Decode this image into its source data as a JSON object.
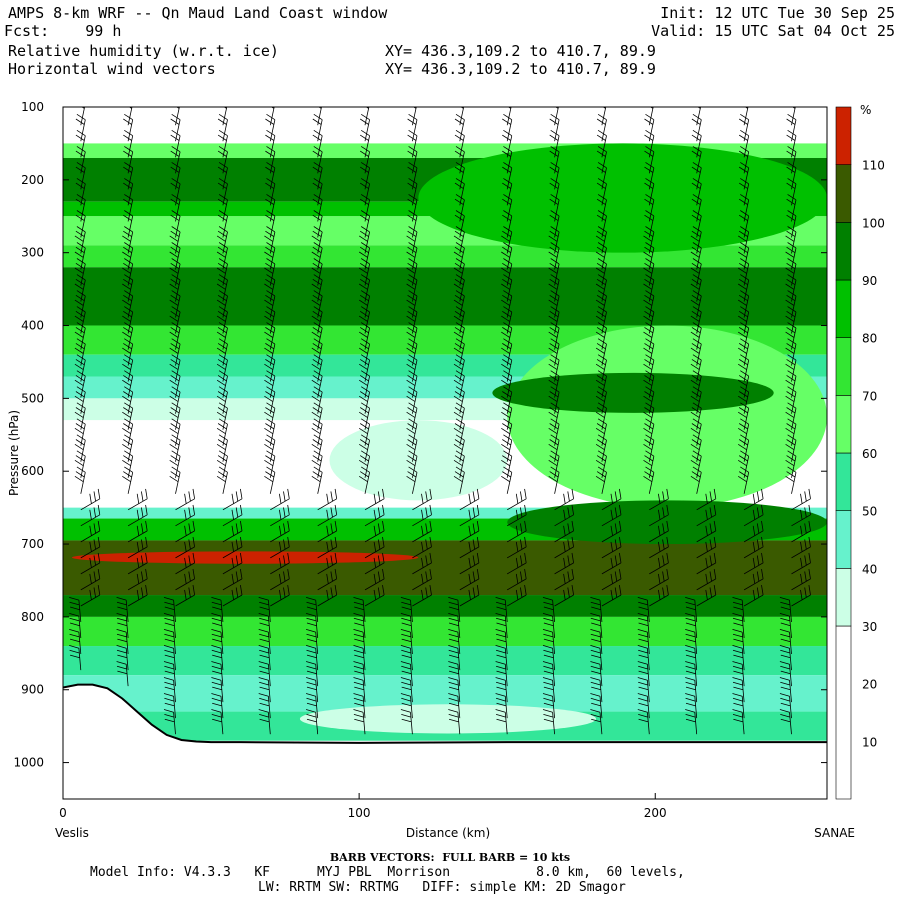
{
  "header": {
    "title": "AMPS 8-km WRF -- Qn Maud Land Coast window",
    "fcst": "Fcst:    99 h",
    "init": "Init: 12 UTC Tue 30 Sep 25",
    "valid": "Valid: 15 UTC Sat 04 Oct 25",
    "field1": "Relative humidity (w.r.t. ice)",
    "field2": "Horizontal wind vectors",
    "xy1": "XY= 436.3,109.2 to 410.7, 89.9",
    "xy2": "XY= 436.3,109.2 to 410.7, 89.9"
  },
  "chart_data": {
    "type": "heatmap",
    "ylabel": "Pressure (hPa)",
    "xlabel": "Distance (km)",
    "xlim": [
      0,
      258
    ],
    "ylim": [
      1050,
      100
    ],
    "x_ticks": [
      0,
      100,
      200
    ],
    "y_ticks": [
      100,
      200,
      300,
      400,
      500,
      600,
      700,
      800,
      900,
      1000
    ],
    "x_start_label": "Veslis",
    "x_end_label": "SANAE",
    "colorbar": {
      "unit": "%",
      "ticks": [
        10,
        20,
        30,
        40,
        50,
        60,
        70,
        80,
        90,
        100,
        110
      ],
      "levels": [
        {
          "from": 0,
          "to": 30,
          "color": "#ffffff"
        },
        {
          "from": 30,
          "to": 40,
          "color": "#ccffe6"
        },
        {
          "from": 40,
          "to": 50,
          "color": "#66f2cc"
        },
        {
          "from": 50,
          "to": 60,
          "color": "#33e699"
        },
        {
          "from": 60,
          "to": 70,
          "color": "#66ff66"
        },
        {
          "from": 70,
          "to": 80,
          "color": "#33e633"
        },
        {
          "from": 80,
          "to": 90,
          "color": "#00c000"
        },
        {
          "from": 90,
          "to": 100,
          "color": "#008000"
        },
        {
          "from": 100,
          "to": 110,
          "color": "#3a5a00"
        },
        {
          "from": 110,
          "to": 120,
          "color": "#cc2200"
        }
      ]
    },
    "rh_layers": [
      {
        "p_top": 100,
        "p_bot": 150,
        "rh": 0
      },
      {
        "p_top": 150,
        "p_bot": 170,
        "rh": 65
      },
      {
        "p_top": 170,
        "p_bot": 230,
        "rh": 95
      },
      {
        "p_top": 230,
        "p_bot": 250,
        "rh": 85
      },
      {
        "p_top": 250,
        "p_bot": 290,
        "rh": 65
      },
      {
        "p_top": 290,
        "p_bot": 320,
        "rh": 75
      },
      {
        "p_top": 320,
        "p_bot": 400,
        "rh": 92
      },
      {
        "p_top": 400,
        "p_bot": 440,
        "rh": 75
      },
      {
        "p_top": 440,
        "p_bot": 470,
        "rh": 55
      },
      {
        "p_top": 470,
        "p_bot": 500,
        "rh": 45
      },
      {
        "p_top": 500,
        "p_bot": 530,
        "rh": 35
      },
      {
        "p_top": 530,
        "p_bot": 650,
        "rh": 20
      },
      {
        "p_top": 650,
        "p_bot": 665,
        "rh": 45
      },
      {
        "p_top": 665,
        "p_bot": 695,
        "rh": 85
      },
      {
        "p_top": 695,
        "p_bot": 770,
        "rh": 103
      },
      {
        "p_top": 770,
        "p_bot": 800,
        "rh": 93
      },
      {
        "p_top": 800,
        "p_bot": 840,
        "rh": 75
      },
      {
        "p_top": 840,
        "p_bot": 880,
        "rh": 55
      },
      {
        "p_top": 880,
        "p_bot": 930,
        "rh": 45
      },
      {
        "p_top": 930,
        "p_bot": 970,
        "rh": 50
      }
    ],
    "rh_patches": [
      {
        "x": [
          120,
          258
        ],
        "p": [
          150,
          300
        ],
        "rh": 80
      },
      {
        "x": [
          150,
          258
        ],
        "p": [
          400,
          650
        ],
        "rh": 65
      },
      {
        "x": [
          145,
          240
        ],
        "p": [
          465,
          520
        ],
        "rh": 93
      },
      {
        "x": [
          90,
          150
        ],
        "p": [
          530,
          640
        ],
        "rh": 35
      },
      {
        "x": [
          150,
          258
        ],
        "p": [
          640,
          700
        ],
        "rh": 93
      },
      {
        "x": [
          3,
          120
        ],
        "p": [
          710,
          727
        ],
        "rh": 113
      },
      {
        "x": [
          80,
          180
        ],
        "p": [
          920,
          960
        ],
        "rh": 30
      }
    ],
    "terrain": {
      "x": [
        0,
        5,
        10,
        15,
        20,
        25,
        30,
        35,
        40,
        45,
        50,
        60,
        100,
        150,
        258
      ],
      "p": [
        897,
        893,
        893,
        898,
        912,
        930,
        948,
        962,
        969,
        971,
        972,
        972,
        973,
        972,
        972
      ]
    }
  },
  "footer": {
    "barb": "BARB VECTORS:  FULL BARB = 10 kts",
    "model1": "Model Info: V4.3.3   KF      MYJ PBL  Morrison           8.0 km,  60 levels,",
    "model2": "LW: RRTM SW: RRTMG   DIFF: simple KM: 2D Smagor"
  }
}
